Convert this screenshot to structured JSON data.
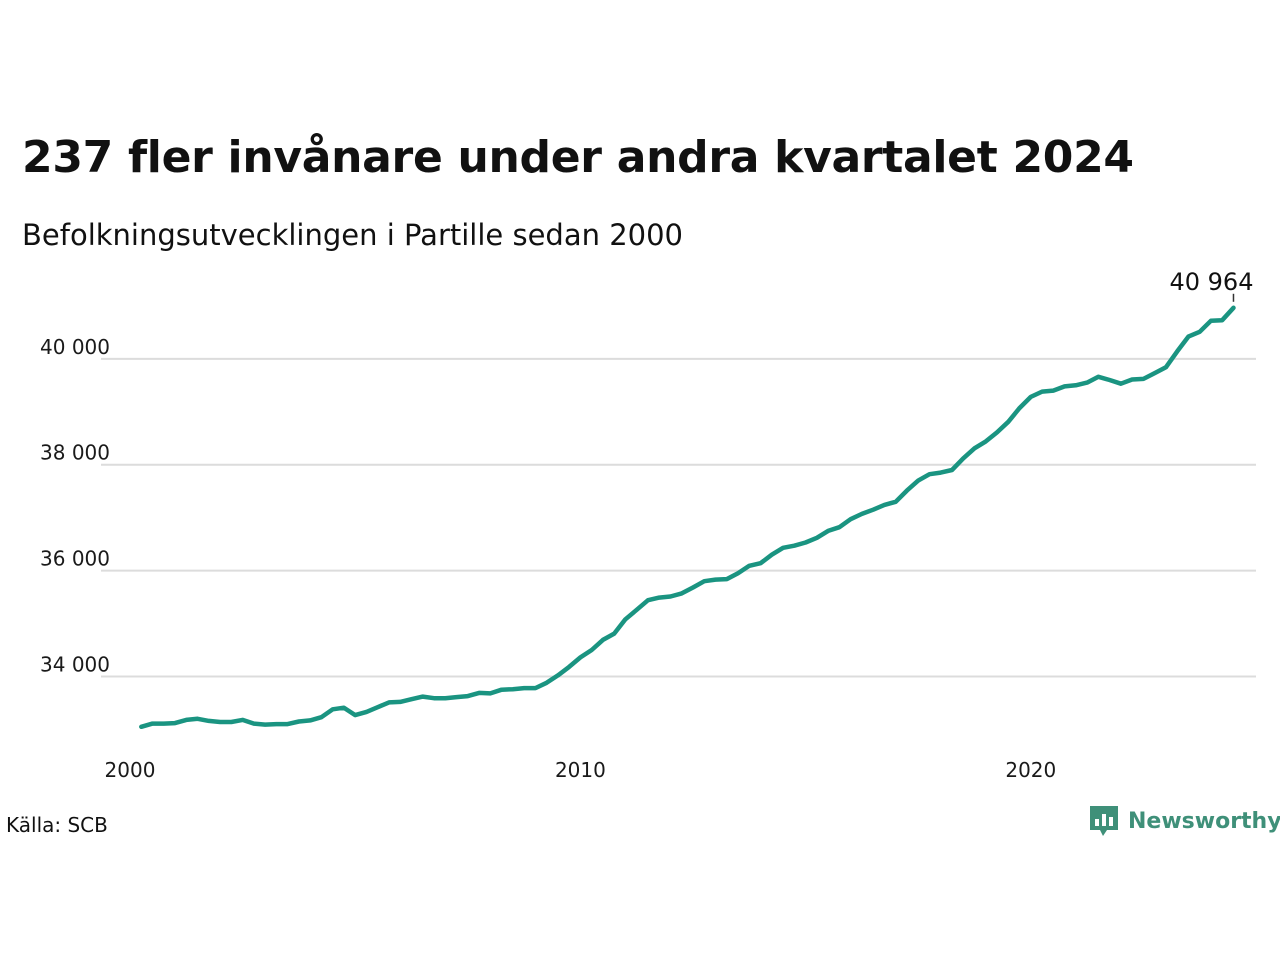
{
  "title": "237 fler invånare under andra kvartalet 2024",
  "subtitle": "Befolkningsutvecklingen i Partille sedan 2000",
  "source": "Källa: SCB",
  "brand": {
    "name": "Newsworthy",
    "icon": "newsworthy-logo-icon",
    "color": "#3f9079"
  },
  "colors": {
    "line": "#1a9481",
    "grid": "#dcdcdc",
    "text": "#111111"
  },
  "chart_data": {
    "type": "line",
    "title": "237 fler invånare under andra kvartalet 2024",
    "subtitle": "Befolkningsutvecklingen i Partille sedan 2000",
    "xlabel": "",
    "ylabel": "",
    "xlim": [
      2000.0,
      2025.0
    ],
    "ylim": [
      32800,
      41300
    ],
    "x_ticks": [
      {
        "value": 2000,
        "label": "2000"
      },
      {
        "value": 2010,
        "label": "2010"
      },
      {
        "value": 2020,
        "label": "2020"
      }
    ],
    "y_ticks": [
      {
        "value": 34000,
        "label": "34 000"
      },
      {
        "value": 36000,
        "label": "36 000"
      },
      {
        "value": 38000,
        "label": "38 000"
      },
      {
        "value": 40000,
        "label": "40 000"
      }
    ],
    "grid": "horizontal",
    "end_label": "40 964",
    "series": [
      {
        "x": [
          2000.25,
          2000.5,
          2000.75,
          2001.0,
          2001.25,
          2001.5,
          2001.75,
          2002.0,
          2002.25,
          2002.5,
          2002.75,
          2003.0,
          2003.25,
          2003.5,
          2003.75,
          2004.0,
          2004.25,
          2004.5,
          2004.75,
          2005.0,
          2005.25,
          2005.5,
          2005.75,
          2006.0,
          2006.25,
          2006.5,
          2006.75,
          2007.0,
          2007.25,
          2007.5,
          2007.75,
          2008.0,
          2008.25,
          2008.5,
          2008.75,
          2009.0,
          2009.25,
          2009.5,
          2009.75,
          2010.0,
          2010.25,
          2010.5,
          2010.75,
          2011.0,
          2011.25,
          2011.5,
          2011.75,
          2012.0,
          2012.25,
          2012.5,
          2012.75,
          2013.0,
          2013.25,
          2013.5,
          2013.75,
          2014.0,
          2014.25,
          2014.5,
          2014.75,
          2015.0,
          2015.25,
          2015.5,
          2015.75,
          2016.0,
          2016.25,
          2016.5,
          2016.75,
          2017.0,
          2017.25,
          2017.5,
          2017.75,
          2018.0,
          2018.25,
          2018.5,
          2018.75,
          2019.0,
          2019.25,
          2019.5,
          2019.75,
          2020.0,
          2020.25,
          2020.5,
          2020.75,
          2021.0,
          2021.25,
          2021.5,
          2021.75,
          2022.0,
          2022.25,
          2022.5,
          2022.75,
          2023.0,
          2023.25,
          2023.5,
          2023.75,
          2024.0,
          2024.25,
          2024.5
        ],
        "y": [
          33050,
          33110,
          33110,
          33120,
          33180,
          33200,
          33160,
          33140,
          33140,
          33180,
          33110,
          33090,
          33100,
          33100,
          33150,
          33170,
          33230,
          33380,
          33410,
          33270,
          33330,
          33420,
          33510,
          33520,
          33570,
          33620,
          33590,
          33590,
          33610,
          33630,
          33690,
          33680,
          33750,
          33760,
          33780,
          33780,
          33880,
          34020,
          34180,
          34360,
          34500,
          34690,
          34810,
          35080,
          35260,
          35440,
          35490,
          35510,
          35570,
          35680,
          35800,
          35830,
          35840,
          35950,
          36090,
          36140,
          36300,
          36430,
          36470,
          36530,
          36620,
          36750,
          36820,
          36970,
          37070,
          37150,
          37240,
          37300,
          37510,
          37700,
          37820,
          37850,
          37900,
          38120,
          38310,
          38440,
          38610,
          38810,
          39070,
          39280,
          39380,
          39400,
          39480,
          39500,
          39550,
          39660,
          39600,
          39530,
          39610,
          39620,
          39730,
          39840,
          40140,
          40420,
          40510,
          40720,
          40730,
          40964
        ]
      }
    ]
  }
}
